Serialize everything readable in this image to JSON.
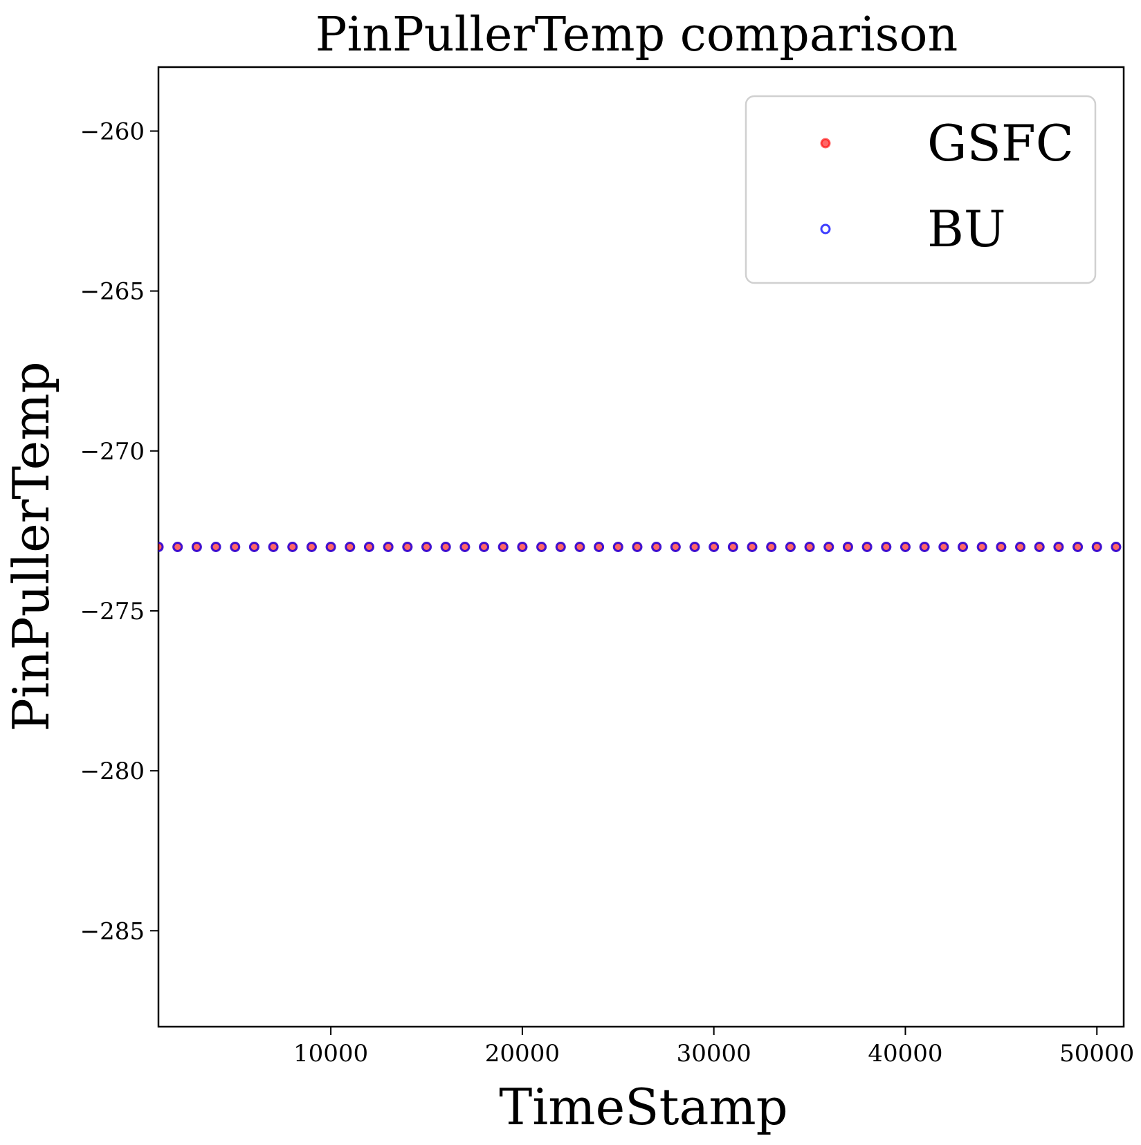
{
  "chart_data": {
    "type": "scatter",
    "title": "PinPullerTemp comparison",
    "xlabel": "TimeStamp",
    "ylabel": "PinPullerTemp",
    "xlim": [
      1000,
      51400
    ],
    "ylim": [
      -288,
      -258
    ],
    "xticks": [
      10000,
      20000,
      30000,
      40000,
      50000
    ],
    "yticks": [
      -260,
      -265,
      -270,
      -275,
      -280,
      -285
    ],
    "ytick_labels": [
      "−260",
      "−265",
      "−270",
      "−275",
      "−280",
      "−285"
    ],
    "grid": false,
    "legend_position": "top-right",
    "x_start": 1000,
    "x_step": 1000,
    "x_count": 51,
    "series": [
      {
        "name": "GSFC",
        "color": "#ff0000",
        "marker": "filled-circle",
        "value": -273
      },
      {
        "name": "BU",
        "color": "#0000ff",
        "marker": "hollow-circle",
        "value": -273
      }
    ]
  }
}
